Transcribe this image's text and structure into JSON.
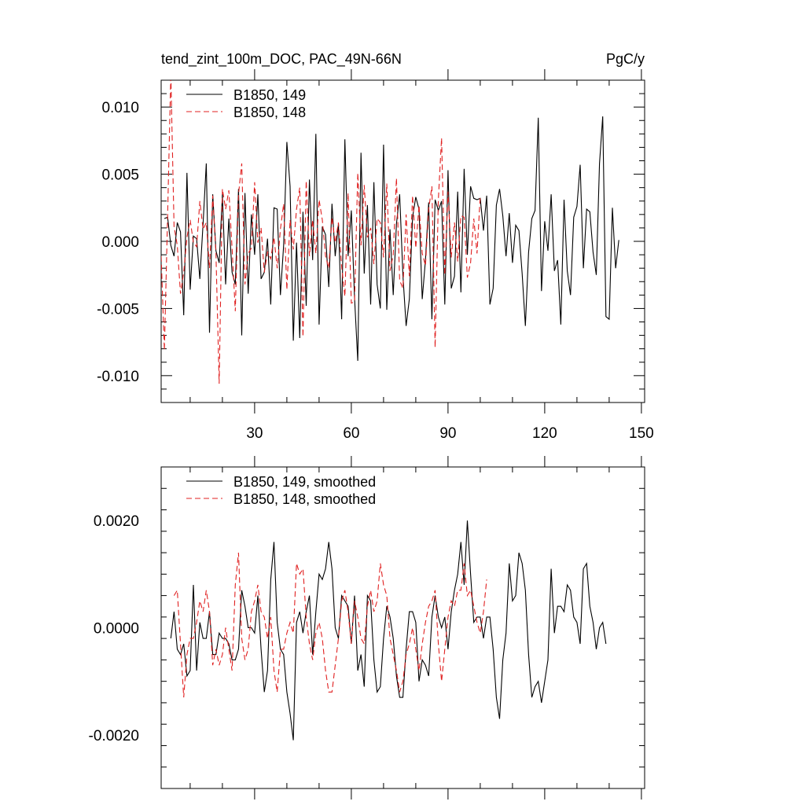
{
  "chart_data": [
    {
      "type": "line",
      "title": "tend_zint_100m_DOC, PAC_49N-66N",
      "units": "PgC/y",
      "xlim": [
        1,
        151
      ],
      "ylim": [
        -0.012,
        0.012
      ],
      "xticks": [
        30,
        60,
        90,
        120,
        150
      ],
      "xtick_labels": [
        "30",
        "60",
        "90",
        "120",
        "150"
      ],
      "yticks": [
        -0.01,
        -0.005,
        0.0,
        0.005,
        0.01
      ],
      "ytick_labels": [
        "-0.010",
        "-0.005",
        "0.000",
        "0.005",
        "0.010"
      ],
      "legend_position": "top-left",
      "series": [
        {
          "name": "B1850, 149",
          "color": "#000000",
          "dash": "solid",
          "x0": 2,
          "values": [
            0.0017,
            0.0018,
            -0.0003,
            -0.0011,
            0.0014,
            0.0007,
            -0.0055,
            0.0051,
            -0.0036,
            0.0004,
            0.0002,
            -0.0028,
            0.0013,
            0.0058,
            -0.0068,
            0.0035,
            -0.0007,
            -0.0016,
            0.0035,
            -0.0032,
            0.0017,
            -0.0023,
            -0.0032,
            0.0039,
            -0.007,
            0.0036,
            -0.0039,
            0.002,
            -0.001,
            0.0035,
            -0.0028,
            -0.0023,
            0.0002,
            -0.0047,
            0.0025,
            0.0024,
            -0.004,
            -0.0003,
            0.0074,
            0.0041,
            -0.0074,
            -0.0001,
            -0.0072,
            0.0022,
            -0.0048,
            0.0046,
            -0.0014,
            0.008,
            -0.0062,
            0.0011,
            0.0005,
            -0.0034,
            0.0028,
            -0.0011,
            0.0013,
            -0.0058,
            0.0076,
            -0.0011,
            0.0023,
            -0.0042,
            -0.0089,
            0.0066,
            -0.0024,
            0.0027,
            -0.0047,
            0.0044,
            -0.0032,
            -0.005,
            0.0072,
            -0.0051,
            0.0009,
            -0.004,
            0.0013,
            0.0035,
            -0.0025,
            -0.0063,
            -0.0043,
            0.0018,
            0.0033,
            0.0024,
            -0.0043,
            -0.0014,
            0.0029,
            -0.0058,
            0.0031,
            0.0023,
            0.003,
            -0.0047,
            0.0053,
            -0.0035,
            -0.0026,
            0.0037,
            -0.0038,
            0.0054,
            -0.001,
            0.0041,
            0.0032,
            0.0031,
            0.0032,
            0.0008,
            0.0034,
            -0.0047,
            -0.0035,
            0.0027,
            0.0039,
            0.0019,
            -0.0011,
            0.0021,
            -0.0016,
            0.0012,
            0.0008,
            -0.0024,
            -0.0063,
            -0.0008,
            0.0017,
            0.0023,
            0.0092,
            -0.0037,
            0.0015,
            -0.0007,
            0.0035,
            -0.0022,
            -0.0014,
            -0.0062,
            0.0031,
            -0.0022,
            -0.004,
            0.0018,
            0.0026,
            0.0057,
            -0.002,
            0.0024,
            0.0022,
            -0.0008,
            -0.0025,
            0.0058,
            0.0093,
            -0.0056,
            -0.0058,
            0.0025,
            -0.002,
            0.0001
          ]
        },
        {
          "name": "B1850, 148",
          "color": "#e02020",
          "dash": "dashed",
          "x0": 1,
          "values": [
            -0.0011,
            -0.0081,
            0.0019,
            0.0125,
            0.0011,
            -0.0003,
            -0.0039,
            -0.0023,
            0.0003,
            0.0016,
            -0.0001,
            -0.0004,
            0.003,
            0.0009,
            0.0014,
            -0.002,
            0.0034,
            -0.0009,
            -0.0106,
            0.0039,
            0.0024,
            0.0038,
            -0.0005,
            -0.0052,
            0.0035,
            0.0058,
            -0.0032,
            -0.0009,
            -0.0005,
            0.0044,
            -0.0001,
            0.001,
            -0.0023,
            -0.0008,
            -0.0013,
            0.0003,
            -0.002,
            0.0009,
            0.0028,
            -0.0036,
            0.0016,
            -0.0006,
            0.0024,
            0.004,
            -0.0071,
            0.0045,
            -0.0011,
            0.0016,
            -0.0009,
            0.0031,
            0.0016,
            -0.0011,
            -0.002,
            0.0018,
            -0.0001,
            0.0014,
            -0.0019,
            -0.0041,
            0.0036,
            -0.0046,
            -0.0045,
            0.0051,
            -0.0003,
            0.0042,
            0.0003,
            0.001,
            -0.0017,
            0.0017,
            0.0014,
            -0.0012,
            0.0043,
            -0.0022,
            -0.001,
            0.0047,
            -0.0029,
            -0.0035,
            0.002,
            -0.0026,
            0.0034,
            -0.0005,
            0.0027,
            -0.0009,
            -0.0018,
            0.0024,
            0.0041,
            -0.0079,
            0.0031,
            0.0077,
            -0.0025,
            0.0037,
            -0.0012,
            0.0014,
            -0.0015,
            0.0019,
            0.0018,
            -0.0027,
            -0.0016,
            0.0017,
            -0.0009,
            0.0034
          ]
        }
      ]
    },
    {
      "type": "line",
      "title": "",
      "xlim": [
        1,
        151
      ],
      "ylim": [
        -0.003,
        0.003
      ],
      "xticks": [
        30,
        60,
        90,
        120,
        150
      ],
      "yticks": [
        -0.002,
        0.0,
        0.002
      ],
      "ytick_labels": [
        "-0.0020",
        "0.0000",
        "0.0020"
      ],
      "legend_position": "top-left",
      "series": [
        {
          "name": "B1850, 149, smoothed",
          "color": "#000000",
          "dash": "solid",
          "x0": 4,
          "values": [
            -0.0002,
            0.0003,
            -0.0004,
            -0.0005,
            -0.0003,
            -0.0009,
            -0.0008,
            0.0008,
            -0.0008,
            0.0001,
            -0.0002,
            -0.0002,
            0.0003,
            -0.0005,
            -0.0005,
            -0.0001,
            -0.0002,
            -0.0002,
            -0.0003,
            -0.0006,
            -0.0006,
            -0.0004,
            0.0007,
            0.0004,
            0.0,
            0.0,
            -0.0001,
            0.0006,
            -0.0004,
            -0.0012,
            -0.0008,
            0.0009,
            0.0016,
            0.0001,
            -0.0004,
            -0.0005,
            -0.0012,
            -0.0016,
            -0.0021,
            0.0001,
            0.0003,
            -0.0001,
            0.0003,
            0.0006,
            -0.0005,
            0.0003,
            0.001,
            0.0009,
            0.0011,
            0.0016,
            0.0011,
            0.0,
            -0.0002,
            0.0006,
            0.0005,
            0.0004,
            -0.0003,
            0.0006,
            -0.0008,
            -0.0005,
            -0.0011,
            0.0006,
            0.0005,
            -0.0006,
            -0.0012,
            -0.0011,
            -0.0002,
            0.0004,
            0.0002,
            -0.0002,
            -0.0009,
            -0.0013,
            -0.0013,
            -0.0004,
            0.0003,
            0.0003,
            0.0001,
            -0.001,
            -0.0006,
            -0.0007,
            -0.0009,
            0.0002,
            0.0006,
            0.0002,
            0.0,
            0.0002,
            -0.0004,
            0.0003,
            0.0007,
            0.001,
            0.0016,
            0.0008,
            0.002,
            0.001,
            0.0001,
            0.0002,
            0.0002,
            -0.0002,
            0.0002,
            0.0002,
            -0.0004,
            -0.0013,
            -0.0017,
            -0.0006,
            -0.0001,
            0.0012,
            0.0005,
            0.0006,
            0.0014,
            0.0012,
            0.0007,
            -0.0005,
            -0.0013,
            -0.0011,
            -0.001,
            -0.0014,
            -0.001,
            -0.0006,
            0.0011,
            -0.0001,
            0.0004,
            0.0004,
            0.0003,
            0.0008,
            0.0007,
            0.0002,
            0.0001,
            -0.0003,
            0.0011,
            0.0012,
            0.0004,
            0.0001,
            -0.0004,
            0.0,
            0.0001,
            -0.0003
          ]
        },
        {
          "name": "B1850, 148, smoothed",
          "color": "#e02020",
          "dash": "dashed",
          "x0": 5,
          "values": [
            0.0006,
            0.0007,
            -0.0003,
            -0.0013,
            -0.0005,
            -0.0002,
            -0.0002,
            0.0001,
            0.0005,
            0.0003,
            0.0007,
            0.0003,
            -0.0007,
            -0.0004,
            -0.0007,
            -0.0005,
            0.0,
            -0.0004,
            -0.0008,
            0.0008,
            0.0014,
            -0.0002,
            -0.0006,
            -0.0004,
            0.0003,
            0.0005,
            0.0008,
            0.0003,
            0.0002,
            -0.0002,
            0.0002,
            -0.0008,
            -0.0012,
            -0.0004,
            -0.0004,
            -0.0001,
            0.0001,
            -0.0001,
            0.0012,
            0.001,
            0.0011,
            0.0002,
            -0.0003,
            -0.0006,
            -0.0001,
            0.0001,
            -0.0002,
            -0.0008,
            -0.0012,
            -0.0012,
            -0.0007,
            -0.0002,
            0.0005,
            0.0007,
            0.0003,
            -0.0003,
            0.0005,
            0.0002,
            -0.0002,
            -0.0003,
            0.0004,
            0.0007,
            0.0003,
            0.0005,
            0.0012,
            0.0008,
            0.0006,
            -0.0002,
            -0.0005,
            -0.0008,
            -0.0012,
            -0.001,
            -0.0005,
            -0.0003,
            0.0,
            -0.0004,
            -0.0008,
            -0.0003,
            0.0001,
            0.0004,
            0.0005,
            0.0007,
            -0.0003,
            -0.001,
            -0.0004,
            0.0002,
            0.0005,
            0.0004,
            0.0007,
            0.0007,
            0.0012,
            0.0006,
            0.0007,
            0.0004,
            0.0001,
            -0.0001,
            0.0003,
            0.0009
          ]
        }
      ]
    }
  ]
}
